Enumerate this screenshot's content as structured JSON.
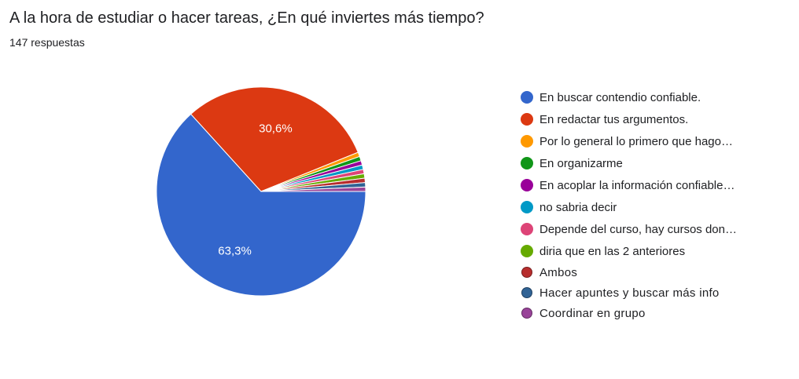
{
  "header": {
    "question": "A la hora de estudiar o hacer tareas, ¿En qué inviertes más tiempo?",
    "responses": "147 respuestas"
  },
  "chart_data": {
    "type": "pie",
    "slices": [
      {
        "label": "En buscar contendio confiable.",
        "value": 63.3,
        "color": "#3366cc",
        "display": "63,3%"
      },
      {
        "label": "En redactar tus argumentos.",
        "value": 30.6,
        "color": "#dc3912",
        "display": "30,6%"
      },
      {
        "label": "Por lo general lo primero que hago…",
        "value": 0.68,
        "color": "#ff9900",
        "display": ""
      },
      {
        "label": "En organizarme",
        "value": 0.68,
        "color": "#109618",
        "display": ""
      },
      {
        "label": "En acoplar la información confiable…",
        "value": 0.68,
        "color": "#990099",
        "display": ""
      },
      {
        "label": "no sabria decir",
        "value": 0.68,
        "color": "#0099c6",
        "display": ""
      },
      {
        "label": "Depende del curso, hay cursos don…",
        "value": 0.68,
        "color": "#dd4477",
        "display": ""
      },
      {
        "label": "diria que en las 2 anteriores",
        "value": 0.68,
        "color": "#66aa00",
        "display": ""
      },
      {
        "label": "Ambos",
        "value": 0.68,
        "color": "#b82e2e",
        "display": ""
      },
      {
        "label": "Hacer apuntes y buscar más info",
        "value": 0.68,
        "color": "#316395",
        "display": ""
      },
      {
        "label": "Coordinar en grupo",
        "value": 0.68,
        "color": "#994499",
        "display": ""
      }
    ],
    "legend_position": "right"
  }
}
